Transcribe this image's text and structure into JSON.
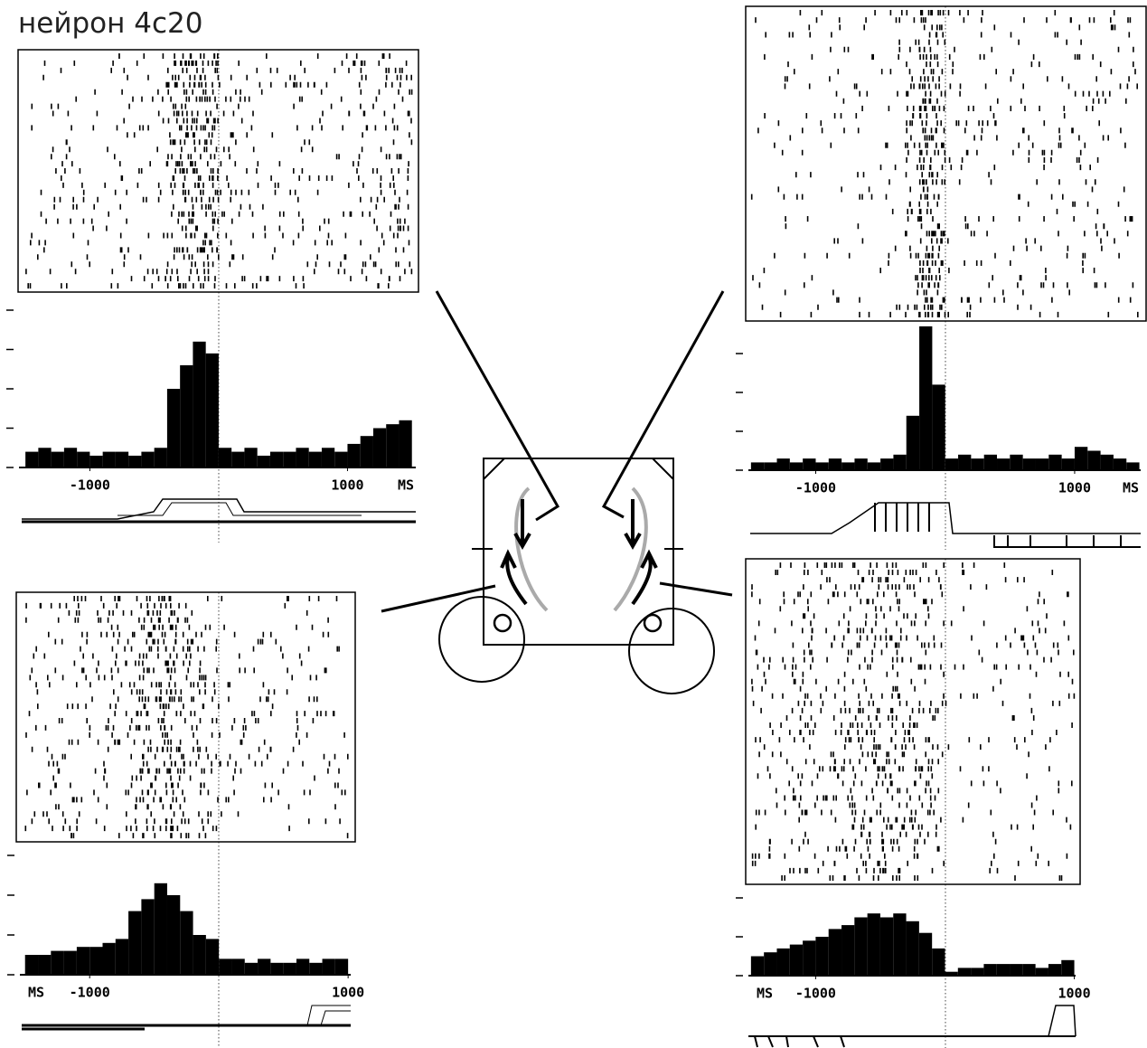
{
  "title": "нейрон 4c20",
  "chart_data": [
    {
      "type": "histogram",
      "color": "#000000",
      "bins": [
        -1500,
        -1400,
        -1300,
        -1200,
        -1100,
        -1000,
        -900,
        -800,
        -700,
        -600,
        -500,
        -400,
        -300,
        -200,
        -100,
        0,
        100,
        200,
        300,
        400,
        500,
        600,
        700,
        800,
        900,
        1000,
        1100,
        1200,
        1300,
        1400,
        1500
      ],
      "values": [
        0.4,
        0.5,
        0.4,
        0.5,
        0.4,
        0.3,
        0.4,
        0.4,
        0.3,
        0.4,
        0.5,
        2.0,
        2.6,
        3.2,
        2.9,
        0.5,
        0.4,
        0.5,
        0.3,
        0.4,
        0.4,
        0.5,
        0.4,
        0.5,
        0.4,
        0.6,
        0.8,
        1.0,
        1.1,
        1.2
      ],
      "xlim": [
        -1550,
        1530
      ],
      "ylim": [
        0,
        4
      ],
      "xticks": [
        -1000,
        1000
      ],
      "yticks": [
        0,
        1,
        2,
        3,
        4
      ],
      "x_unit": "MS"
    },
    {
      "type": "histogram",
      "color": "#000000",
      "bins": [
        -1500,
        -1400,
        -1300,
        -1200,
        -1100,
        -1000,
        -900,
        -800,
        -700,
        -600,
        -500,
        -400,
        -300,
        -200,
        -100,
        0,
        100,
        200,
        300,
        400,
        500,
        600,
        700,
        800,
        900,
        1000,
        1100,
        1200,
        1300,
        1400,
        1500
      ],
      "values": [
        0.2,
        0.2,
        0.3,
        0.2,
        0.3,
        0.2,
        0.3,
        0.2,
        0.3,
        0.2,
        0.3,
        0.4,
        1.4,
        3.7,
        2.2,
        0.3,
        0.4,
        0.3,
        0.4,
        0.3,
        0.4,
        0.3,
        0.3,
        0.4,
        0.3,
        0.6,
        0.5,
        0.4,
        0.3,
        0.2
      ],
      "xlim": [
        -1520,
        1510
      ],
      "ylim": [
        0,
        4
      ],
      "xticks": [
        -1000,
        1000
      ],
      "yticks": [
        0,
        1,
        2,
        3
      ],
      "x_unit": "MS"
    },
    {
      "type": "histogram",
      "color": "#000000",
      "bins": [
        -1500,
        -1400,
        -1300,
        -1200,
        -1100,
        -1000,
        -900,
        -800,
        -700,
        -600,
        -500,
        -400,
        -300,
        -200,
        -100,
        0,
        100,
        200,
        300,
        400,
        500,
        600,
        700,
        800,
        900,
        1000
      ],
      "values": [
        0.5,
        0.5,
        0.6,
        0.6,
        0.7,
        0.7,
        0.8,
        0.9,
        1.6,
        1.9,
        2.3,
        2.0,
        1.6,
        1.0,
        0.9,
        0.4,
        0.4,
        0.3,
        0.4,
        0.3,
        0.3,
        0.4,
        0.3,
        0.4,
        0.4
      ],
      "xlim": [
        -1540,
        1020
      ],
      "ylim": [
        0,
        3
      ],
      "xticks": [
        -1000,
        1000
      ],
      "yticks": [
        0,
        1,
        2,
        3
      ],
      "x_unit": "MS"
    },
    {
      "type": "histogram",
      "color": "#000000",
      "bins": [
        -1500,
        -1400,
        -1300,
        -1200,
        -1100,
        -1000,
        -900,
        -800,
        -700,
        -600,
        -500,
        -400,
        -300,
        -200,
        -100,
        0,
        100,
        200,
        300,
        400,
        500,
        600,
        700,
        800,
        900,
        1000
      ],
      "values": [
        0.5,
        0.6,
        0.7,
        0.8,
        0.9,
        1.0,
        1.2,
        1.3,
        1.5,
        1.6,
        1.5,
        1.6,
        1.4,
        1.1,
        0.7,
        0.1,
        0.2,
        0.2,
        0.3,
        0.3,
        0.3,
        0.3,
        0.2,
        0.3,
        0.4
      ],
      "xlim": [
        -1520,
        1010
      ],
      "ylim": [
        0,
        2
      ],
      "xticks": [
        -1000,
        1000
      ],
      "yticks": [
        0,
        1,
        2
      ],
      "x_unit": "MS"
    }
  ]
}
